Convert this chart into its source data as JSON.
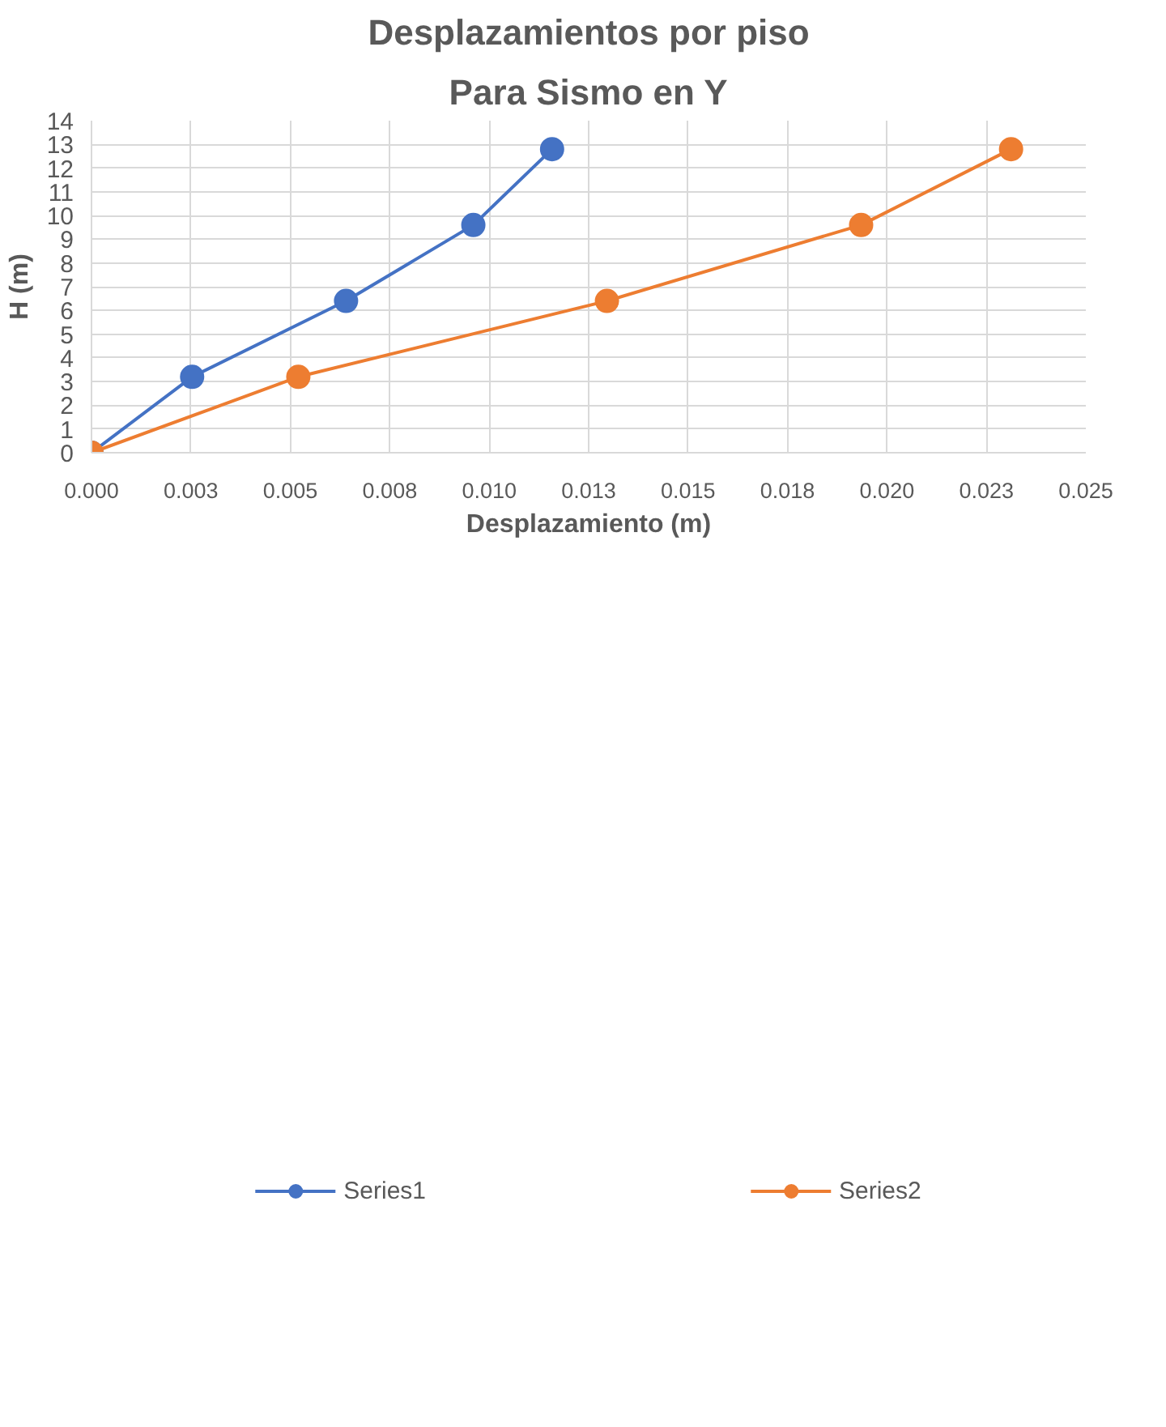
{
  "chart_data": {
    "type": "line",
    "title": "Desplazamientos por piso",
    "subtitle": "Para Sismo en Y",
    "xlabel": "Desplazamiento (m)",
    "ylabel": "H (m)",
    "series": [
      {
        "name": "Series1",
        "color": "#4472c4",
        "x": [
          0,
          0.00253,
          0.0064,
          0.0096,
          0.01158
        ],
        "values": [
          0,
          3.2,
          6.4,
          9.6,
          12.8
        ]
      },
      {
        "name": "Series2",
        "color": "#ed7d31",
        "x": [
          0,
          0.0052,
          0.01296,
          0.01935,
          0.02312
        ],
        "values": [
          0,
          3.2,
          6.4,
          9.6,
          12.8
        ]
      }
    ],
    "xlim": [
      0,
      0.025
    ],
    "xticks": [
      {
        "value": 0,
        "label": "0.000"
      },
      {
        "value": 0.0025,
        "label": "0.003"
      },
      {
        "value": 0.005,
        "label": "0.005"
      },
      {
        "value": 0.0075,
        "label": "0.008"
      },
      {
        "value": 0.01,
        "label": "0.010"
      },
      {
        "value": 0.0125,
        "label": "0.013"
      },
      {
        "value": 0.015,
        "label": "0.015"
      },
      {
        "value": 0.0175,
        "label": "0.018"
      },
      {
        "value": 0.02,
        "label": "0.020"
      },
      {
        "value": 0.0225,
        "label": "0.023"
      },
      {
        "value": 0.025,
        "label": "0.025"
      }
    ],
    "ylim": [
      0,
      14
    ],
    "yticks": [
      0,
      1,
      2,
      3,
      4,
      5,
      6,
      7,
      8,
      9,
      10,
      11,
      12,
      13,
      14
    ],
    "grid": true,
    "legend": "bottom",
    "marker": "circle",
    "line_style": "solid"
  }
}
